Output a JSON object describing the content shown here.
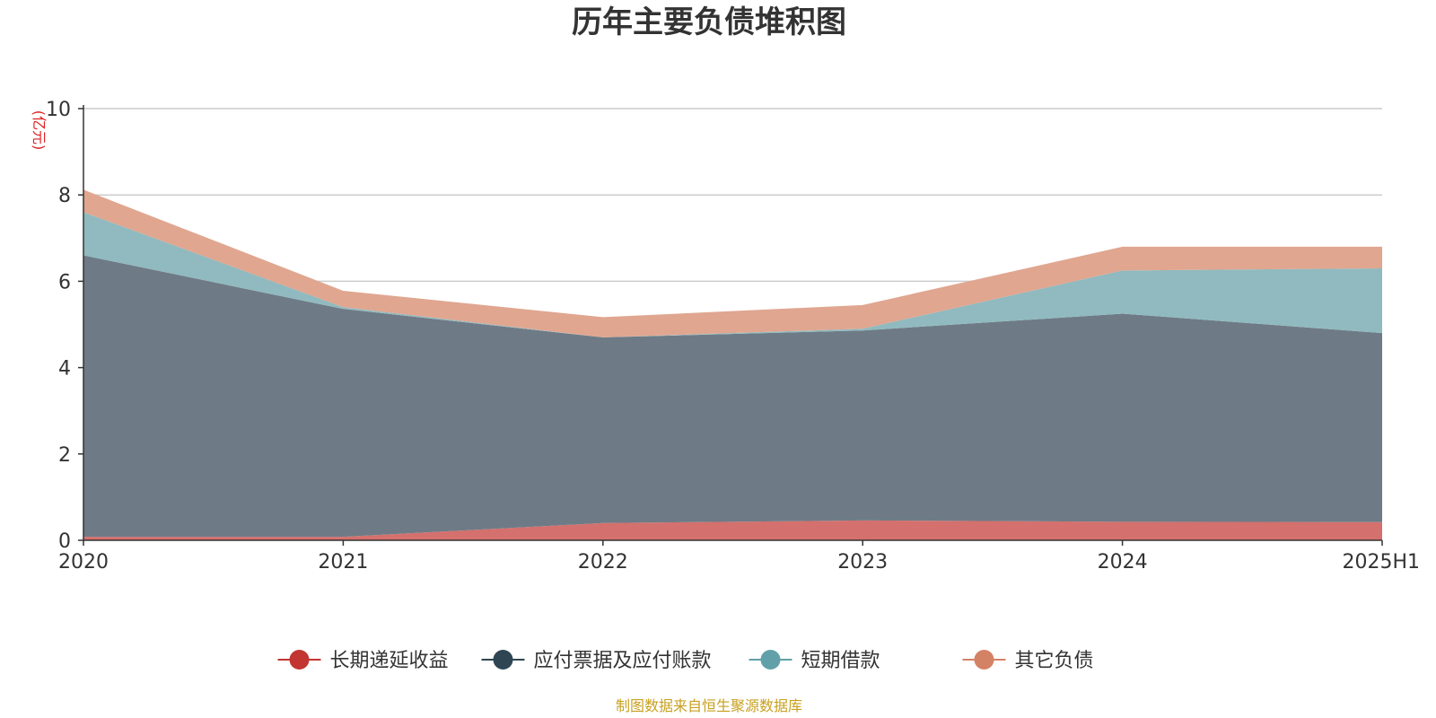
{
  "chart_data": {
    "type": "area",
    "stacked": true,
    "title": "历年主要负债堆积图",
    "unit_label": "(亿元)",
    "unit_color": "#e02020",
    "categories": [
      "2020",
      "2021",
      "2022",
      "2023",
      "2024",
      "2025H1"
    ],
    "ylim": [
      0,
      10
    ],
    "yticks": [
      "0",
      "2",
      "4",
      "6",
      "8",
      "10"
    ],
    "grid": true,
    "legend_position": "bottom",
    "series": [
      {
        "name": "长期递延收益",
        "values": [
          0.08,
          0.08,
          0.4,
          0.46,
          0.43,
          0.42
        ],
        "color": "#c23531",
        "fill": "#d4706d"
      },
      {
        "name": "应付票据及应付账款",
        "values": [
          6.52,
          5.28,
          4.3,
          4.4,
          4.82,
          4.38
        ],
        "color": "#2f4554",
        "fill": "#6e7b86"
      },
      {
        "name": "短期借款",
        "values": [
          1.0,
          0.04,
          0.0,
          0.04,
          1.0,
          1.5
        ],
        "color": "#61a0a8",
        "fill": "#90babf"
      },
      {
        "name": "其它负债",
        "values": [
          0.52,
          0.38,
          0.47,
          0.55,
          0.55,
          0.5
        ],
        "color": "#d48265",
        "fill": "#e0a690"
      }
    ]
  },
  "source_text": "制图数据来自恒生聚源数据库",
  "source_color": "#c8a020"
}
